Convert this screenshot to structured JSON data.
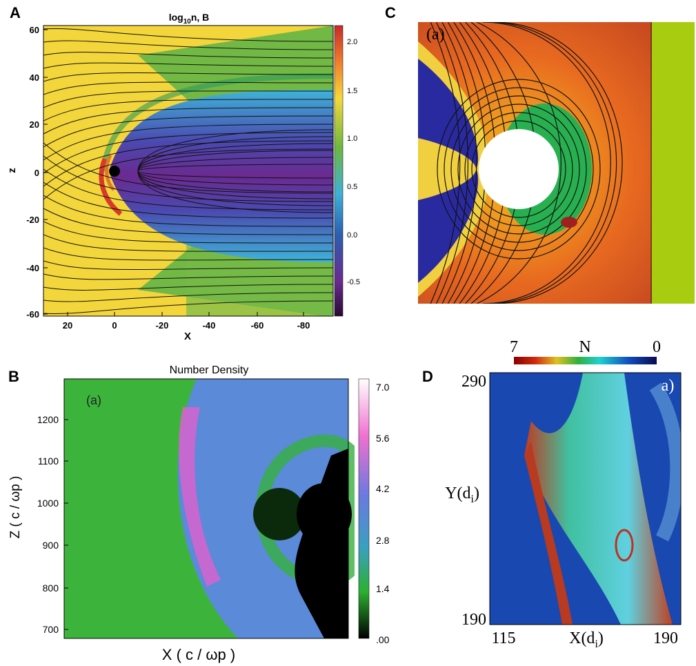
{
  "panels": [
    {
      "label": "A",
      "title": {
        "base": "log",
        "sub": "10",
        "rest": "n, B"
      },
      "xlabel": "X",
      "ylabel": "z",
      "xticks": [
        "20",
        "0",
        "-20",
        "-40",
        "-60",
        "-80"
      ],
      "yticks": [
        "60",
        "40",
        "20",
        "0",
        "-20",
        "-40",
        "-60"
      ],
      "colorbar_ticks": [
        "2.0",
        "1.5",
        "1.0",
        "0.5",
        "0.0",
        "-0.5"
      ]
    },
    {
      "label": "B",
      "title": "Number Density",
      "inset": "(a)",
      "xlabel": "X ( c / ωp )",
      "ylabel": "Z ( c / ωp )",
      "yticks": [
        "1200",
        "1100",
        "1000",
        "900",
        "800",
        "700"
      ],
      "colorbar_ticks": [
        "7.0",
        "5.6",
        "4.2",
        "2.8",
        "1.4",
        ".00"
      ]
    },
    {
      "label": "C",
      "inset": "(a)"
    },
    {
      "label": "D",
      "inset": "a)",
      "colorbar": {
        "max": "7",
        "title": "N",
        "min": "0"
      },
      "xlabel": {
        "base": "X(d",
        "sub": "i",
        "rest": ")"
      },
      "ylabel": {
        "base": "Y(d",
        "sub": "i",
        "rest": ")"
      },
      "xticks": [
        "115",
        "190"
      ],
      "yticks": [
        "290",
        "190"
      ]
    }
  ]
}
